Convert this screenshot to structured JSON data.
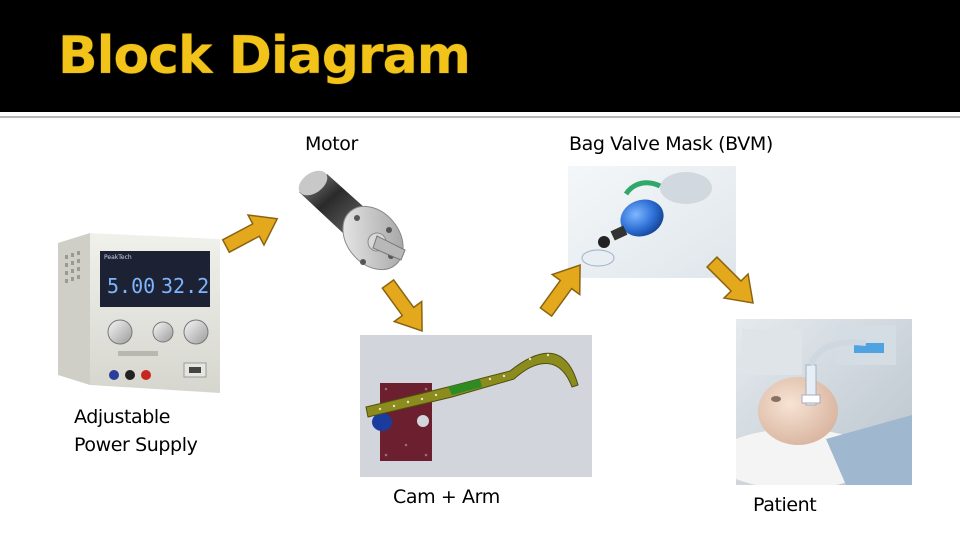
{
  "slide": {
    "title": "Block Diagram"
  },
  "nodes": {
    "power_supply": {
      "label_lines": [
        "Adjustable",
        "Power Supply"
      ],
      "display_voltage": "5.00",
      "display_current": "32.2",
      "brand": "PeakTech"
    },
    "motor": {
      "label": "Motor"
    },
    "bvm": {
      "label": "Bag Valve Mask (BVM)"
    },
    "cam_arm": {
      "label": "Cam + Arm"
    },
    "patient": {
      "label": "Patient"
    }
  },
  "colors": {
    "title_text": "#f2c318",
    "arrow_fill": "#e3a81c",
    "arrow_stroke": "#8a6412",
    "arm_color": "#8c8c1e",
    "arm_green": "#2e8b22",
    "cam_color": "#1a3c9e",
    "plate_color": "#6b1f2f"
  },
  "icons": {
    "power_supply": "power-supply-image",
    "motor": "motor-image",
    "bvm": "bag-valve-mask-image",
    "cam_arm": "cam-arm-render",
    "patient": "patient-manikin-image",
    "arrow": "flow-arrow"
  }
}
